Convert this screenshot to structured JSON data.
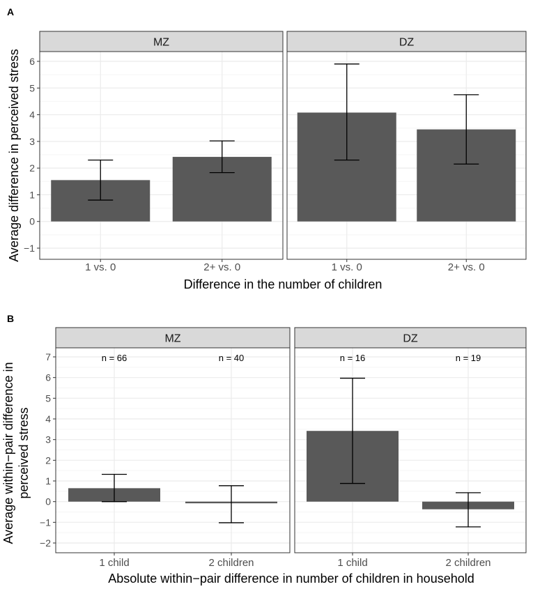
{
  "chart_data": [
    {
      "type": "bar",
      "label": "A",
      "ylabel": "Average difference in perceived stress",
      "xlabel": "Difference in the number of children",
      "ylim": [
        -1.4,
        6.4
      ],
      "yticks": [
        -1,
        0,
        1,
        2,
        3,
        4,
        5,
        6
      ],
      "grid": true,
      "facets": [
        {
          "title": "MZ",
          "categories": [
            "1 vs. 0",
            "2+ vs. 0"
          ],
          "values": [
            1.55,
            2.42
          ],
          "err_low": [
            0.8,
            1.83
          ],
          "err_high": [
            2.3,
            3.02
          ],
          "n_labels": []
        },
        {
          "title": "DZ",
          "categories": [
            "1 vs. 0",
            "2+ vs. 0"
          ],
          "values": [
            4.08,
            3.45
          ],
          "err_low": [
            2.3,
            2.15
          ],
          "err_high": [
            5.9,
            4.75
          ],
          "n_labels": []
        }
      ]
    },
    {
      "type": "bar",
      "label": "B",
      "ylabel_lines": [
        "Average within−pair difference in",
        "perceived stress"
      ],
      "xlabel": "Absolute within−pair difference in number of children in household",
      "ylim": [
        -2.5,
        7.6
      ],
      "yticks": [
        -2,
        -1,
        0,
        1,
        2,
        3,
        4,
        5,
        6,
        7
      ],
      "grid": true,
      "facets": [
        {
          "title": "MZ",
          "categories": [
            "1 child",
            "2 children"
          ],
          "values": [
            0.65,
            -0.08
          ],
          "err_low": [
            0.0,
            -1.02
          ],
          "err_high": [
            1.32,
            0.77
          ],
          "n_labels": [
            "n = 66",
            "n = 40"
          ]
        },
        {
          "title": "DZ",
          "categories": [
            "1 child",
            "2 children"
          ],
          "values": [
            3.42,
            -0.37
          ],
          "err_low": [
            0.88,
            -1.22
          ],
          "err_high": [
            5.97,
            0.43
          ],
          "n_labels": [
            "n = 16",
            "n = 19"
          ]
        }
      ]
    }
  ],
  "colors": {
    "bar": "#595959",
    "strip": "#d9d9d9",
    "grid_major": "#ebebeb",
    "grid_minor": "#f5f5f5",
    "panel_border": "#333333",
    "text": "#000000",
    "tick_text": "#4d4d4d"
  }
}
